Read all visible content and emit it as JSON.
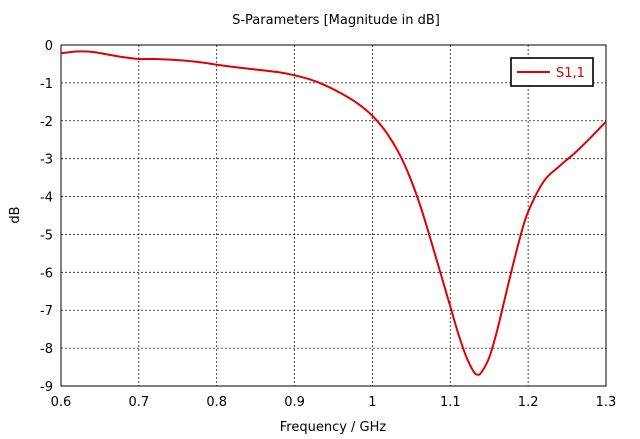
{
  "chart_data": {
    "type": "line",
    "title": "S-Parameters [Magnitude in dB]",
    "xlabel": "Frequency / GHz",
    "ylabel": "dB",
    "xlim": [
      0.6,
      1.3
    ],
    "ylim": [
      -9,
      0
    ],
    "xticks": [
      0.6,
      0.7,
      0.8,
      0.9,
      1.0,
      1.1,
      1.2,
      1.3
    ],
    "xtick_labels": [
      "0.6",
      "0.7",
      "0.8",
      "0.9",
      "1",
      "1.1",
      "1.2",
      "1.3"
    ],
    "yticks": [
      0,
      -1,
      -2,
      -3,
      -4,
      -5,
      -6,
      -7,
      -8,
      -9
    ],
    "ytick_labels": [
      "0",
      "-1",
      "-2",
      "-3",
      "-4",
      "-5",
      "-6",
      "-7",
      "-8",
      "-9"
    ],
    "grid": true,
    "legend_position": "top-right",
    "series": [
      {
        "name": "S1,1",
        "color": "#e00000",
        "x": [
          0.6,
          0.62,
          0.64,
          0.66,
          0.68,
          0.7,
          0.72,
          0.75,
          0.78,
          0.8,
          0.83,
          0.86,
          0.88,
          0.9,
          0.92,
          0.94,
          0.96,
          0.98,
          1.0,
          1.02,
          1.04,
          1.06,
          1.08,
          1.1,
          1.11,
          1.12,
          1.13,
          1.135,
          1.14,
          1.15,
          1.16,
          1.17,
          1.18,
          1.19,
          1.2,
          1.22,
          1.24,
          1.26,
          1.28,
          1.3
        ],
        "y": [
          -0.22,
          -0.17,
          -0.18,
          -0.25,
          -0.32,
          -0.37,
          -0.37,
          -0.4,
          -0.46,
          -0.52,
          -0.6,
          -0.67,
          -0.72,
          -0.8,
          -0.91,
          -1.07,
          -1.28,
          -1.53,
          -1.87,
          -2.37,
          -3.1,
          -4.15,
          -5.5,
          -6.9,
          -7.6,
          -8.2,
          -8.62,
          -8.7,
          -8.64,
          -8.25,
          -7.55,
          -6.7,
          -5.85,
          -5.05,
          -4.4,
          -3.6,
          -3.2,
          -2.85,
          -2.45,
          -2.02
        ]
      }
    ]
  }
}
